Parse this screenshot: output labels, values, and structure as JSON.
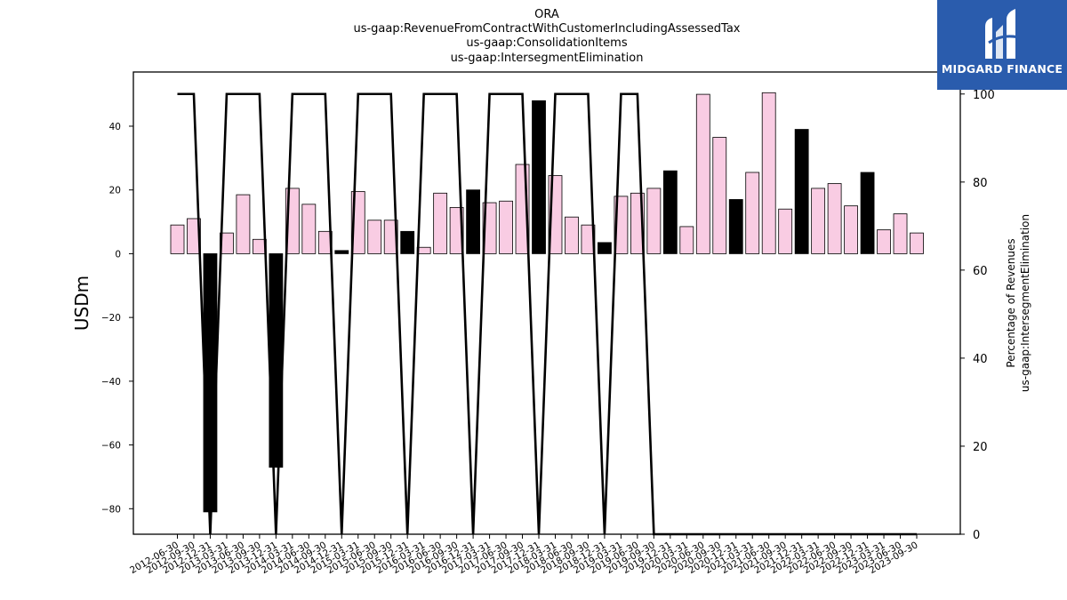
{
  "chart_data": {
    "type": "bar",
    "title_lines": [
      "ORA",
      "us-gaap:RevenueFromContractWithCustomerIncludingAssessedTax",
      "us-gaap:ConsolidationItems",
      "us-gaap:IntersegmentElimination"
    ],
    "ylabel": "USDm",
    "y2label_lines": [
      "Percentage of Revenues",
      "us-gaap:IntersegmentElimination"
    ],
    "ylim": [
      -88,
      57
    ],
    "y2lim": [
      0,
      105
    ],
    "yticks": [
      -80,
      -60,
      -40,
      -20,
      0,
      20,
      40
    ],
    "y2ticks": [
      0,
      20,
      40,
      60,
      80,
      100
    ],
    "categories": [
      "2012-06-30",
      "2012-09-30",
      "2012-12-31",
      "2013-03-31",
      "2013-06-30",
      "2013-09-30",
      "2013-12-31",
      "2014-03-31",
      "2014-06-30",
      "2014-09-30",
      "2014-12-31",
      "2015-03-31",
      "2015-06-30",
      "2015-09-30",
      "2015-12-31",
      "2016-03-31",
      "2016-06-30",
      "2016-09-30",
      "2016-12-31",
      "2017-03-31",
      "2017-06-30",
      "2017-09-30",
      "2017-12-31",
      "2018-03-31",
      "2018-06-30",
      "2018-09-30",
      "2018-12-31",
      "2019-03-31",
      "2019-06-30",
      "2019-09-30",
      "2019-12-31",
      "2020-03-31",
      "2020-06-30",
      "2020-09-30",
      "2020-12-31",
      "2021-03-31",
      "2021-06-30",
      "2021-09-30",
      "2021-12-31",
      "2022-03-31",
      "2022-06-30",
      "2022-09-30",
      "2022-12-31",
      "2023-03-31",
      "2023-06-30",
      "2023-09-30"
    ],
    "series": [
      {
        "values": [
          9,
          11,
          -81,
          6.5,
          18.5,
          4.5,
          -67,
          20.5,
          15.5,
          7,
          1,
          19.5,
          10.5,
          10.5,
          7,
          2,
          19,
          14.5,
          20,
          16,
          16.5,
          28,
          48,
          24.5,
          11.5,
          9,
          3.5,
          18,
          19,
          20.5,
          26,
          8.5,
          50,
          36.5,
          17,
          25.5,
          50.5,
          14,
          39,
          20.5,
          22,
          15,
          25.5,
          7.5,
          12.5,
          6.5
        ],
        "highlight": [
          false,
          false,
          true,
          false,
          false,
          false,
          true,
          false,
          false,
          false,
          true,
          false,
          false,
          false,
          true,
          false,
          false,
          false,
          true,
          false,
          false,
          false,
          true,
          false,
          false,
          false,
          true,
          false,
          false,
          false,
          true,
          false,
          false,
          false,
          true,
          false,
          false,
          false,
          true,
          false,
          false,
          false,
          true,
          false,
          false,
          false
        ]
      },
      {
        "axis": "right",
        "type": "line",
        "values": [
          100,
          100,
          0,
          100,
          100,
          100,
          0,
          100,
          100,
          100,
          0,
          100,
          100,
          100,
          0,
          100,
          100,
          100,
          0,
          100,
          100,
          100,
          0,
          100,
          100,
          100,
          0,
          100,
          100,
          0,
          0,
          0,
          0,
          0,
          0,
          0,
          0,
          0,
          0,
          0,
          0,
          0,
          0,
          0,
          0,
          0
        ]
      }
    ],
    "colors": {
      "bar": "#f9cce3",
      "bar_highlight": "#000000",
      "line": "#000000"
    }
  },
  "logo": {
    "text": "MIDGARD FINANCE",
    "background": "#2a5cad"
  }
}
